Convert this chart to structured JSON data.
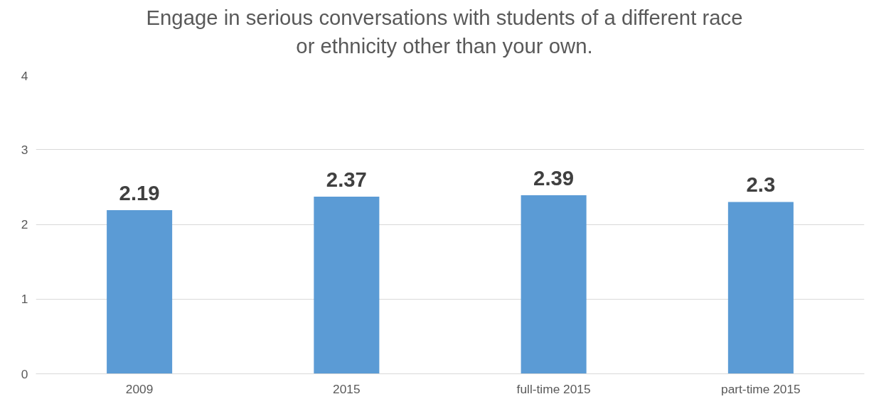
{
  "chart_data": {
    "type": "bar",
    "title": "Engage in serious conversations with students of a different race\nor ethnicity other than your own.",
    "categories": [
      "2009",
      "2015",
      "full-time 2015",
      "part-time 2015"
    ],
    "values": [
      2.19,
      2.37,
      2.39,
      2.3
    ],
    "color": "#5b9bd5",
    "ylim": [
      0,
      4
    ],
    "yticks": [
      0,
      1,
      2,
      3,
      4
    ],
    "grid": "y",
    "data_labels": true
  }
}
